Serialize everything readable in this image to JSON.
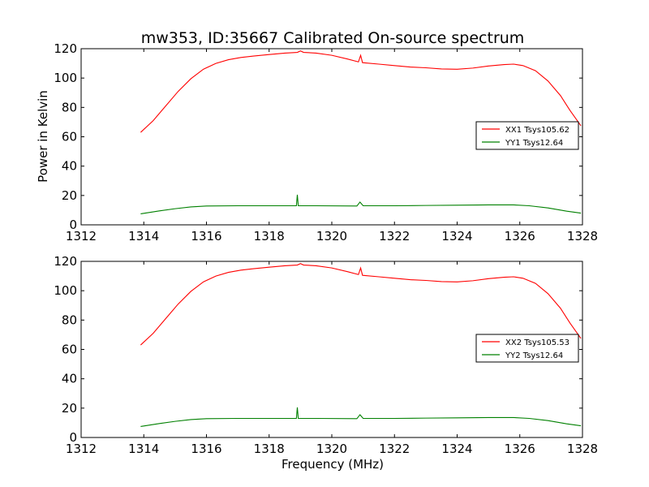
{
  "figure": {
    "title": "mw353, ID:35667 Calibrated On-source spectrum",
    "ylabel": "Power in Kelvin",
    "xlabel": "Frequency (MHz)"
  },
  "chart_data": [
    {
      "type": "line",
      "xlim": [
        1312,
        1328
      ],
      "ylim": [
        0,
        120
      ],
      "xticks": [
        1312,
        1314,
        1316,
        1318,
        1320,
        1322,
        1324,
        1326,
        1328
      ],
      "yticks": [
        0,
        20,
        40,
        60,
        80,
        100,
        120
      ],
      "grid": false,
      "legend_position": "right",
      "series": [
        {
          "name": "XX1 Tsys105.62",
          "color": "#ff0000",
          "points": [
            [
              1313.9,
              63
            ],
            [
              1314.3,
              71
            ],
            [
              1314.7,
              81
            ],
            [
              1315.1,
              91
            ],
            [
              1315.5,
              99.5
            ],
            [
              1315.9,
              106
            ],
            [
              1316.3,
              110
            ],
            [
              1316.7,
              112.5
            ],
            [
              1317.1,
              114
            ],
            [
              1317.5,
              115
            ],
            [
              1318.0,
              116
            ],
            [
              1318.5,
              117
            ],
            [
              1318.9,
              117.5
            ],
            [
              1319.0,
              118.5
            ],
            [
              1319.1,
              117.5
            ],
            [
              1319.5,
              117
            ],
            [
              1320.0,
              115.5
            ],
            [
              1320.5,
              113
            ],
            [
              1320.85,
              111
            ],
            [
              1320.92,
              115.5
            ],
            [
              1320.98,
              110.5
            ],
            [
              1321.5,
              109.5
            ],
            [
              1322.0,
              108.5
            ],
            [
              1322.5,
              107.5
            ],
            [
              1323.0,
              107
            ],
            [
              1323.5,
              106.2
            ],
            [
              1324.0,
              106
            ],
            [
              1324.5,
              106.8
            ],
            [
              1325.0,
              108.2
            ],
            [
              1325.5,
              109.2
            ],
            [
              1325.8,
              109.5
            ],
            [
              1326.1,
              108.5
            ],
            [
              1326.5,
              105
            ],
            [
              1326.9,
              98
            ],
            [
              1327.3,
              88
            ],
            [
              1327.6,
              78
            ],
            [
              1327.95,
              67.5
            ]
          ]
        },
        {
          "name": "YY1 Tsys12.64",
          "color": "#008000",
          "points": [
            [
              1313.9,
              7.5
            ],
            [
              1314.5,
              9.5
            ],
            [
              1315.0,
              11
            ],
            [
              1315.5,
              12.2
            ],
            [
              1316.0,
              12.8
            ],
            [
              1317.0,
              13
            ],
            [
              1318.0,
              13
            ],
            [
              1318.87,
              13
            ],
            [
              1318.9,
              20.5
            ],
            [
              1318.93,
              13
            ],
            [
              1319.5,
              13
            ],
            [
              1320.8,
              12.8
            ],
            [
              1320.9,
              15.5
            ],
            [
              1321.0,
              13
            ],
            [
              1322.0,
              13
            ],
            [
              1323.0,
              13.2
            ],
            [
              1324.0,
              13.4
            ],
            [
              1325.0,
              13.6
            ],
            [
              1325.8,
              13.6
            ],
            [
              1326.3,
              13
            ],
            [
              1326.9,
              11.5
            ],
            [
              1327.5,
              9.3
            ],
            [
              1327.95,
              8
            ]
          ]
        }
      ]
    },
    {
      "type": "line",
      "xlim": [
        1312,
        1328
      ],
      "ylim": [
        0,
        120
      ],
      "xticks": [
        1312,
        1314,
        1316,
        1318,
        1320,
        1322,
        1324,
        1326,
        1328
      ],
      "yticks": [
        0,
        20,
        40,
        60,
        80,
        100,
        120
      ],
      "grid": false,
      "legend_position": "right",
      "series": [
        {
          "name": "XX2 Tsys105.53",
          "color": "#ff0000",
          "points": [
            [
              1313.9,
              63
            ],
            [
              1314.3,
              71
            ],
            [
              1314.7,
              81
            ],
            [
              1315.1,
              91
            ],
            [
              1315.5,
              99.5
            ],
            [
              1315.9,
              106
            ],
            [
              1316.3,
              110
            ],
            [
              1316.7,
              112.5
            ],
            [
              1317.1,
              114
            ],
            [
              1317.5,
              115
            ],
            [
              1318.0,
              116
            ],
            [
              1318.5,
              117
            ],
            [
              1318.9,
              117.5
            ],
            [
              1319.0,
              118.5
            ],
            [
              1319.1,
              117.5
            ],
            [
              1319.5,
              117
            ],
            [
              1320.0,
              115.5
            ],
            [
              1320.5,
              113
            ],
            [
              1320.85,
              111
            ],
            [
              1320.92,
              115.5
            ],
            [
              1320.98,
              110.5
            ],
            [
              1321.5,
              109.5
            ],
            [
              1322.0,
              108.5
            ],
            [
              1322.5,
              107.5
            ],
            [
              1323.0,
              107
            ],
            [
              1323.5,
              106.2
            ],
            [
              1324.0,
              106
            ],
            [
              1324.5,
              106.8
            ],
            [
              1325.0,
              108.2
            ],
            [
              1325.5,
              109.2
            ],
            [
              1325.8,
              109.5
            ],
            [
              1326.1,
              108.5
            ],
            [
              1326.5,
              105
            ],
            [
              1326.9,
              98
            ],
            [
              1327.3,
              88
            ],
            [
              1327.6,
              78
            ],
            [
              1327.95,
              67.5
            ]
          ]
        },
        {
          "name": "YY2 Tsys12.64",
          "color": "#008000",
          "points": [
            [
              1313.9,
              7.5
            ],
            [
              1314.5,
              9.5
            ],
            [
              1315.0,
              11
            ],
            [
              1315.5,
              12.2
            ],
            [
              1316.0,
              12.8
            ],
            [
              1317.0,
              13
            ],
            [
              1318.0,
              13
            ],
            [
              1318.87,
              13
            ],
            [
              1318.9,
              20.5
            ],
            [
              1318.93,
              13
            ],
            [
              1319.5,
              13
            ],
            [
              1320.8,
              12.8
            ],
            [
              1320.9,
              15.5
            ],
            [
              1321.0,
              13
            ],
            [
              1322.0,
              13
            ],
            [
              1323.0,
              13.2
            ],
            [
              1324.0,
              13.4
            ],
            [
              1325.0,
              13.6
            ],
            [
              1325.8,
              13.6
            ],
            [
              1326.3,
              13
            ],
            [
              1326.9,
              11.5
            ],
            [
              1327.5,
              9.3
            ],
            [
              1327.95,
              8
            ]
          ]
        }
      ]
    }
  ]
}
